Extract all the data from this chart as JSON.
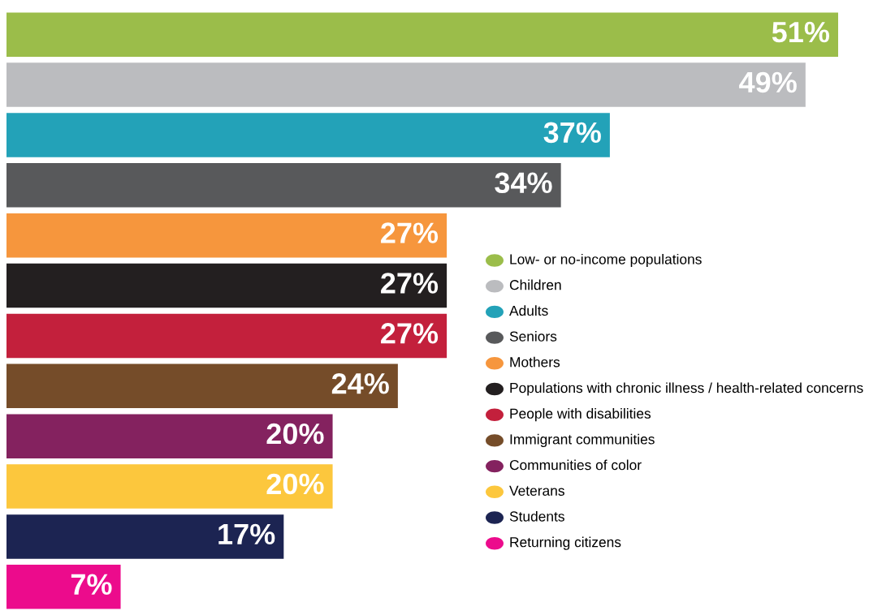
{
  "chart_data": {
    "type": "bar",
    "orientation": "horizontal",
    "grid": false,
    "categories": [
      null,
      null,
      null,
      null,
      null,
      null,
      null,
      null,
      null,
      null,
      null,
      null
    ],
    "values": [
      51,
      49,
      37,
      34,
      27,
      27,
      27,
      24,
      20,
      20,
      17,
      7
    ],
    "colors": [
      "#9bbd4a",
      "#bbbcbf",
      "#23a2b8",
      "#58595b",
      "#f6963d",
      "#231f20",
      "#c3203c",
      "#754c29",
      "#84225f",
      "#fcc73d",
      "#1c2452",
      "#ec0b8c"
    ],
    "value_labels": [
      "51%",
      "49%",
      "37%",
      "34%",
      "27%",
      "27%",
      "27%",
      "24%",
      "20%",
      "20%",
      "17%",
      "7%"
    ],
    "annotations": [
      "Low- or no-income populations",
      "Children",
      "Adults",
      "Seniors",
      "Mothers",
      "Populations with chronic illness / health-related concerns",
      "People with disabilities",
      "Immigrant communities",
      "Communities of color",
      "Veterans",
      "Students",
      "Returning citizens"
    ]
  }
}
